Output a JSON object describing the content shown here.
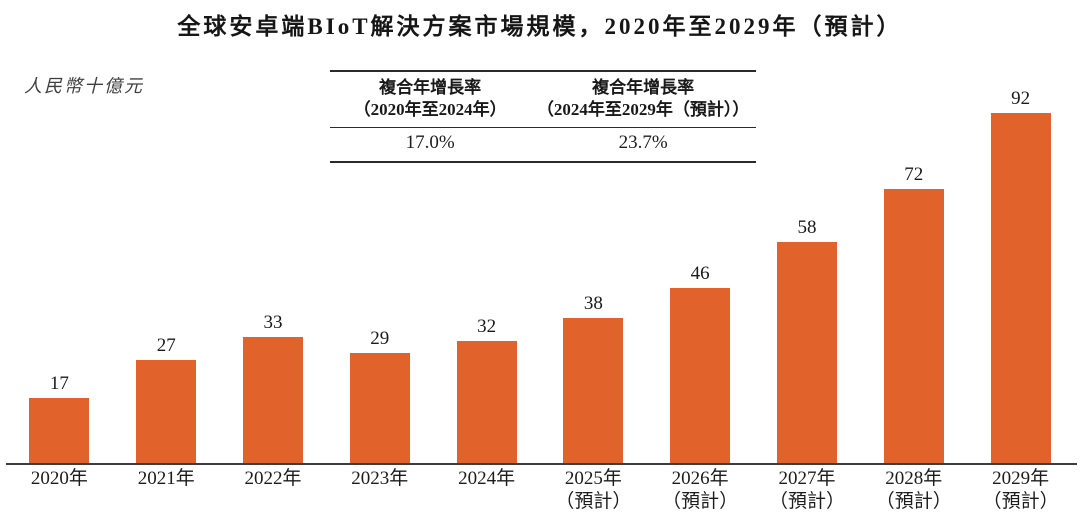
{
  "title": "全球安卓端BIoT解決方案市場規模，2020年至2029年（預計）",
  "unit_label": "人民幣十億元",
  "cagr_table": {
    "columns": [
      {
        "header_line1": "複合年增長率",
        "header_line2": "（2020年至2024年）",
        "value": "17.0%"
      },
      {
        "header_line1": "複合年增長率",
        "header_line2": "（2024年至2029年（預計））",
        "value": "23.7%"
      }
    ]
  },
  "chart_data": {
    "type": "bar",
    "title": "全球安卓端BIoT解決方案市場規模，2020年至2029年（預計）",
    "ylabel": "人民幣十億元",
    "xlabel": "",
    "categories": [
      "2020年",
      "2021年",
      "2022年",
      "2023年",
      "2024年",
      "2025年\n（預計）",
      "2026年\n（預計）",
      "2027年\n（預計）",
      "2028年\n（預計）",
      "2029年\n（預計）"
    ],
    "values": [
      17,
      27,
      33,
      29,
      32,
      38,
      46,
      58,
      72,
      92
    ],
    "value_labels_shown": true,
    "bar_color": "#E2622B",
    "axis_color": "#3d3d3d",
    "grid": false,
    "legend": false,
    "ylim": [
      0,
      100
    ],
    "annotations": [
      {
        "label": "複合年增長率（2020年至2024年）",
        "value": "17.0%"
      },
      {
        "label": "複合年增長率（2024年至2029年（預計））",
        "value": "23.7%"
      }
    ]
  }
}
